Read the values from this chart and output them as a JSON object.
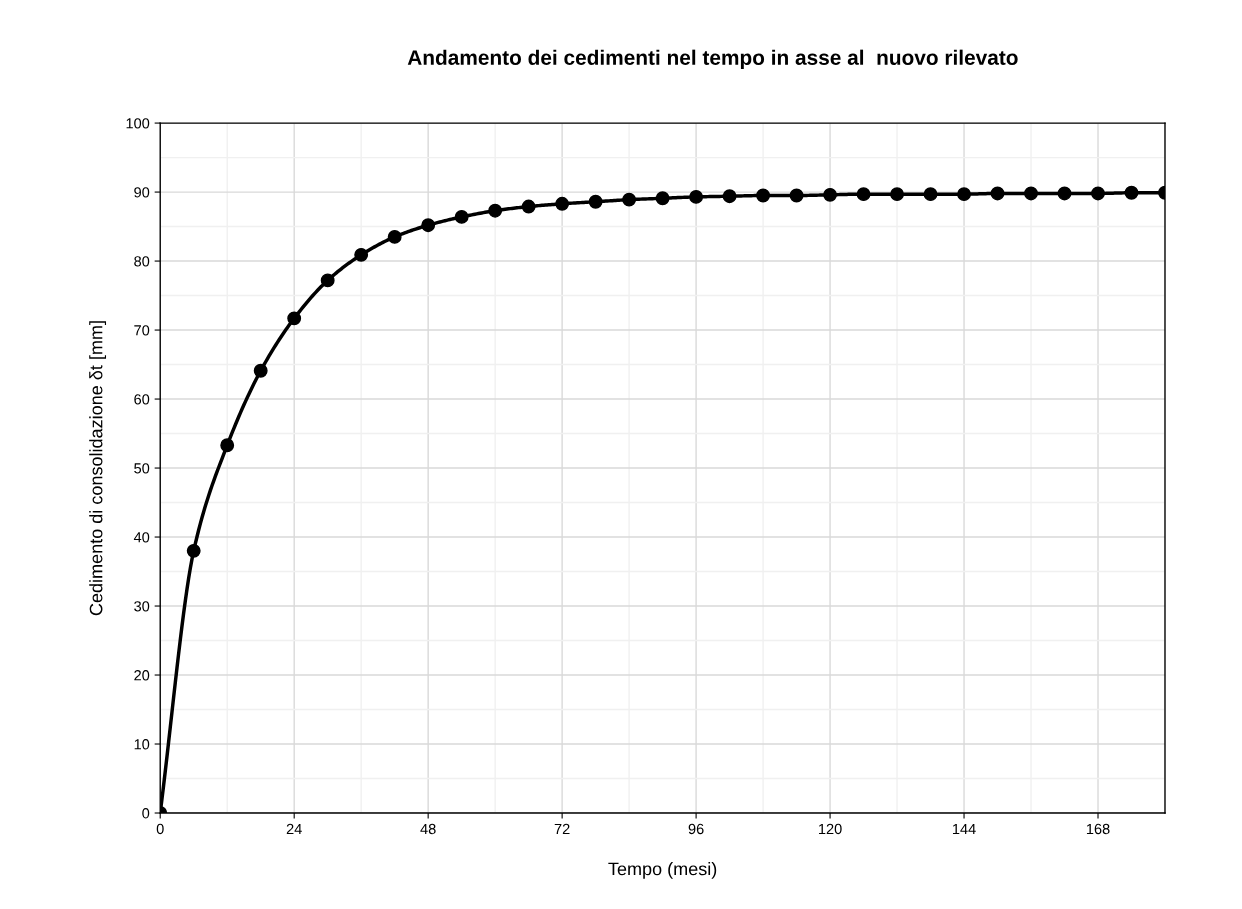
{
  "chart_data": {
    "type": "line",
    "title": "Andamento dei cedimenti nel tempo in asse al  nuovo rilevato",
    "xlabel": "Tempo (mesi)",
    "ylabel": "Cedimento di consolidazione δt [mm]",
    "x": [
      0,
      6,
      12,
      18,
      24,
      30,
      36,
      42,
      48,
      54,
      60,
      66,
      72,
      78,
      84,
      90,
      96,
      102,
      108,
      114,
      120,
      126,
      132,
      138,
      144,
      150,
      156,
      162,
      168,
      174,
      180
    ],
    "series": [
      {
        "color": "#000000",
        "values": [
          0,
          38.0,
          53.3,
          64.1,
          71.7,
          77.2,
          80.9,
          83.5,
          85.2,
          86.4,
          87.3,
          87.9,
          88.3,
          88.6,
          88.9,
          89.1,
          89.3,
          89.4,
          89.5,
          89.5,
          89.6,
          89.7,
          89.7,
          89.7,
          89.7,
          89.8,
          89.8,
          89.8,
          89.8,
          89.9,
          89.9
        ]
      }
    ],
    "xlim": [
      0,
      180
    ],
    "xticks": [
      0,
      24,
      48,
      72,
      96,
      120,
      144,
      168
    ],
    "ylim": [
      0,
      100
    ],
    "yticks": [
      0,
      10,
      20,
      30,
      40,
      50,
      60,
      70,
      80,
      90,
      100
    ],
    "grid": true,
    "marker": "circle",
    "line_style": "solid",
    "legend": false
  }
}
